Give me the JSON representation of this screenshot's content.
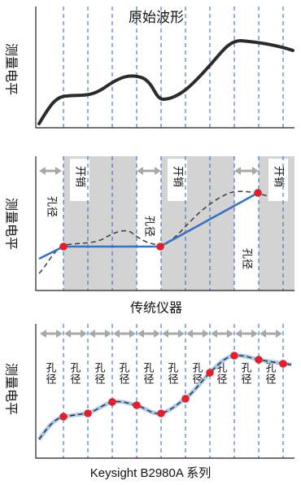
{
  "panel1": {
    "title": "原始波形",
    "ylabel": "测量电平"
  },
  "panel2": {
    "ylabel": "测量电平",
    "aperture_label": "孔径",
    "overhead_label": "开销",
    "caption": "传统仪器"
  },
  "panel3": {
    "ylabel": "测量电平",
    "aperture_label": "孔径",
    "caption": "Keysight B2980A 系列"
  },
  "colors": {
    "waveform": "#2b2b2b",
    "measured_line": "#3a72c0",
    "sample_point": "#e0202c",
    "overhead_fill": "#d3d3d3",
    "divider": "#3a6fc4",
    "arrow": "#a8a8a8"
  }
}
